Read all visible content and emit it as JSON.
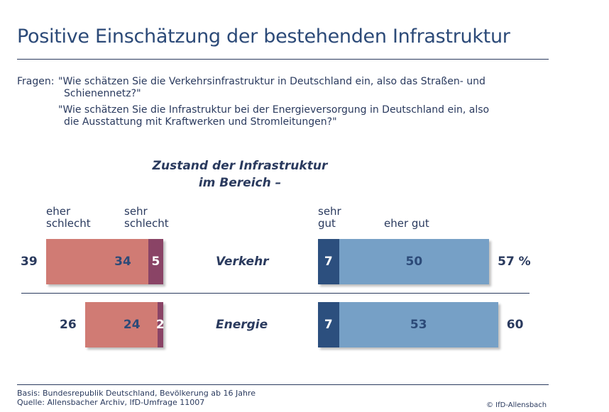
{
  "title": "Positive Einschätzung der bestehenden Infrastruktur",
  "questions": {
    "prefix": "Fragen:",
    "q1_line1": "\"Wie schätzen Sie die Verkehrsinfrastruktur in Deutschland ein, also das Straßen- und",
    "q1_line2": "Schienennetz?\"",
    "q2_line1": "\"Wie schätzen Sie die Infrastruktur bei der Energieversorgung in Deutschland ein, also",
    "q2_line2": "die Ausstattung mit Kraftwerken und Stromleitungen?\""
  },
  "chart_data": {
    "type": "bar",
    "subtitle_line1": "Zustand der Infrastruktur",
    "subtitle_line2": "im Bereich –",
    "categories": [
      "Verkehr",
      "Energie"
    ],
    "series": [
      {
        "name": "eher schlecht",
        "name_line1": "eher",
        "name_line2": "schlecht",
        "values": [
          34,
          24
        ],
        "color": "#d07b74"
      },
      {
        "name": "sehr schlecht",
        "name_line1": "sehr",
        "name_line2": "schlecht",
        "values": [
          5,
          2
        ],
        "color": "#8a4466"
      },
      {
        "name": "sehr gut",
        "name_line1": "sehr",
        "name_line2": "gut",
        "values": [
          7,
          7
        ],
        "color": "#2c4f7e"
      },
      {
        "name": "eher gut",
        "name_line1": "eher gut",
        "name_line2": "",
        "values": [
          50,
          53
        ],
        "color": "#76a0c6"
      }
    ],
    "negative_totals": [
      "39",
      "26"
    ],
    "positive_totals": [
      "57 %",
      "60"
    ]
  },
  "footer": {
    "basis": "Basis: Bundesrepublik Deutschland, Bevölkerung ab 16 Jahre",
    "source": "Quelle: Allensbacher Archiv, IfD-Umfrage 11007",
    "copyright": "© IfD-Allensbach"
  }
}
